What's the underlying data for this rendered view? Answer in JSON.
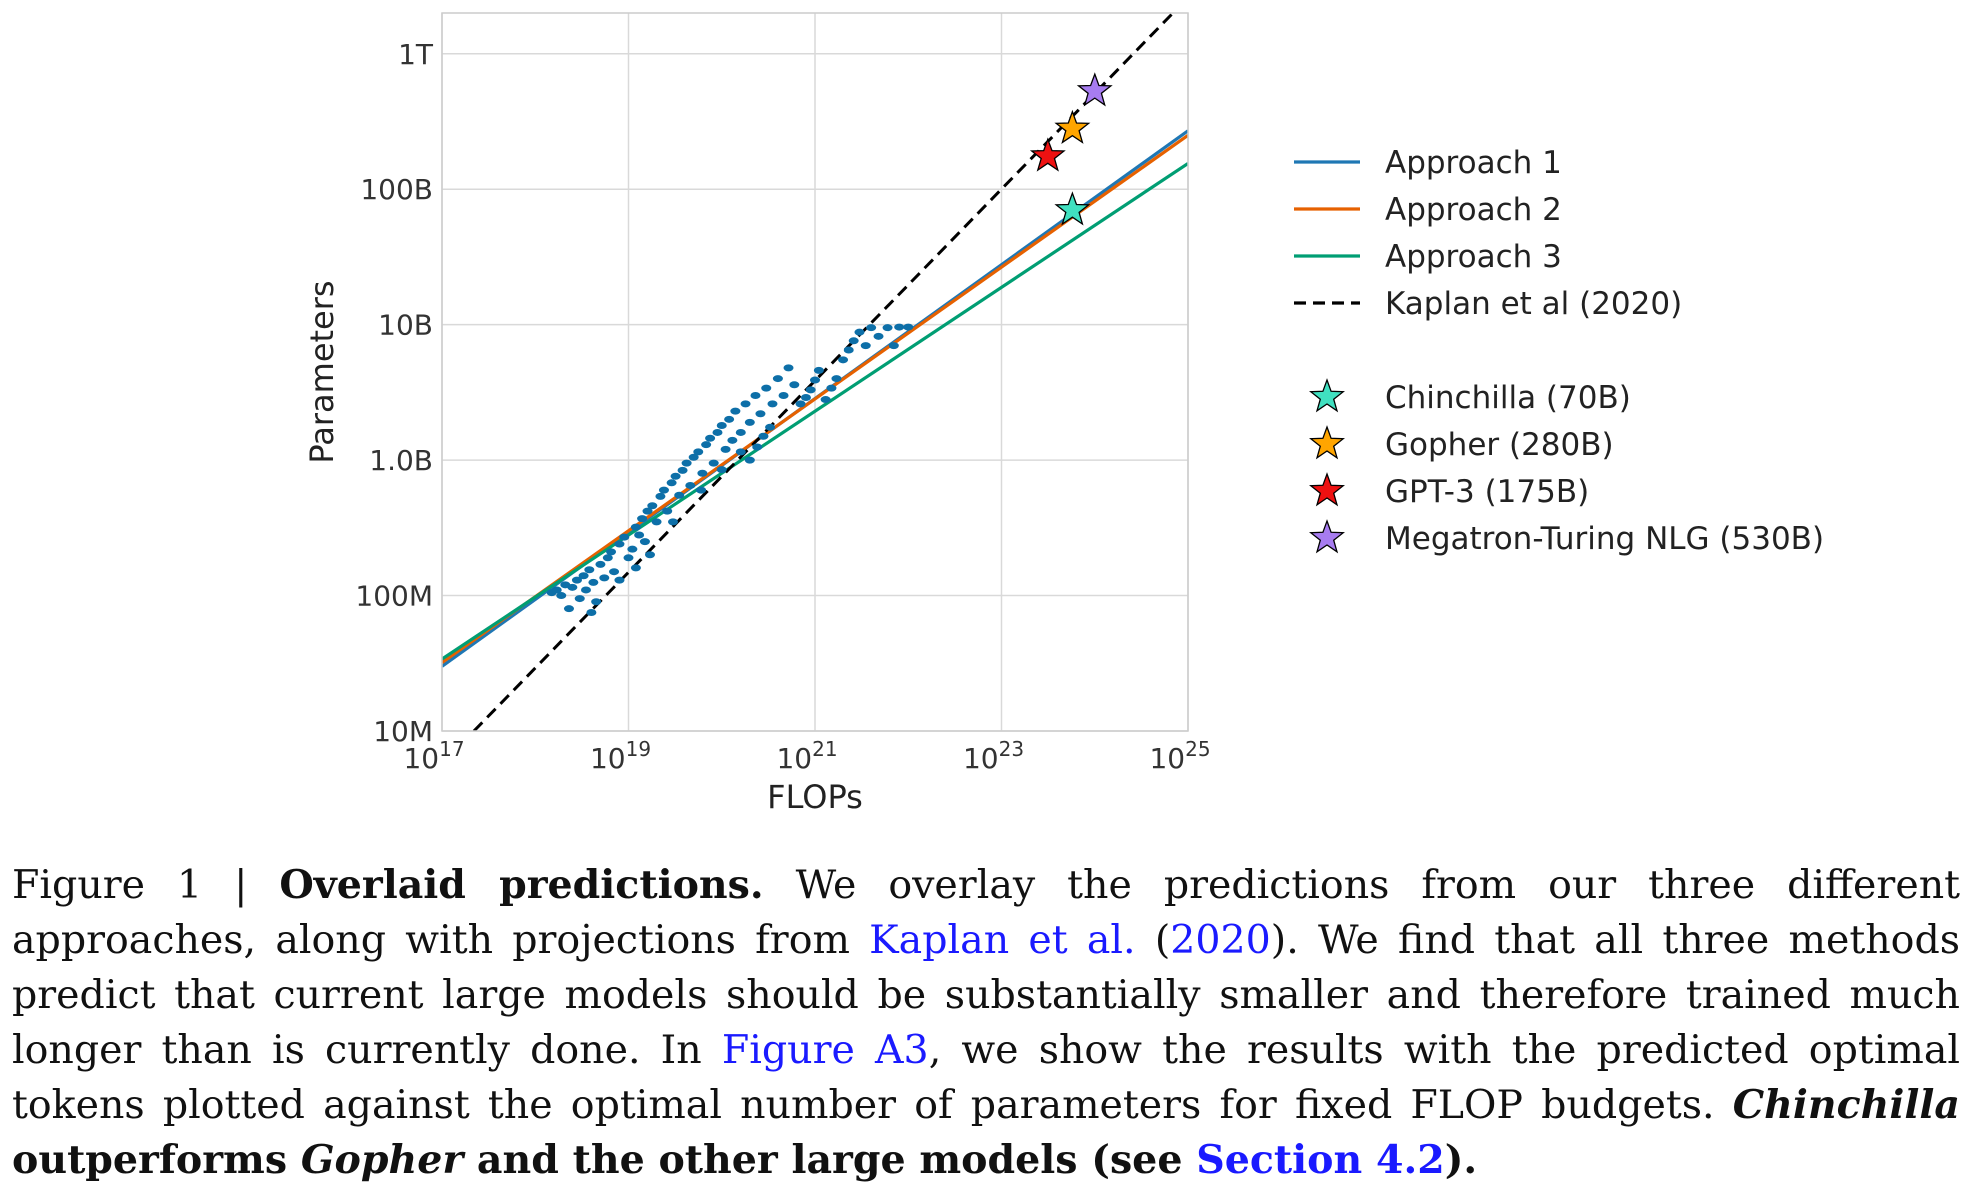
{
  "chart_data": {
    "type": "scatter",
    "xlabel": "FLOPs",
    "ylabel": "Parameters",
    "xscale": "log",
    "yscale": "log",
    "xlim": [
      1e+17,
      1e+25
    ],
    "ylim": [
      10000000.0,
      2000000000000.0
    ],
    "grid": true,
    "legend_position": "right",
    "x_ticks": [
      {
        "value": 1e+17,
        "base": "10",
        "exp": "17"
      },
      {
        "value": 1e+19,
        "base": "10",
        "exp": "19"
      },
      {
        "value": 1e+21,
        "base": "10",
        "exp": "21"
      },
      {
        "value": 1e+23,
        "base": "10",
        "exp": "23"
      },
      {
        "value": 1e+25,
        "base": "10",
        "exp": "25"
      }
    ],
    "y_ticks": [
      {
        "value": 10000000.0,
        "label": "10M"
      },
      {
        "value": 100000000.0,
        "label": "100M"
      },
      {
        "value": 1000000000.0,
        "label": "1.0B"
      },
      {
        "value": 10000000000.0,
        "label": "10B"
      },
      {
        "value": 100000000000.0,
        "label": "100B"
      },
      {
        "value": 1000000000000.0,
        "label": "1T"
      }
    ],
    "lines": [
      {
        "name": "Approach 1",
        "color": "#1f77b4",
        "dash": "solid",
        "x": [
          1e+17,
          1e+25
        ],
        "y": [
          30000000.0,
          270000000000.0
        ]
      },
      {
        "name": "Approach 2",
        "color": "#e66100",
        "dash": "solid",
        "x": [
          1e+17,
          1e+25
        ],
        "y": [
          32000000.0,
          250000000000.0
        ]
      },
      {
        "name": "Approach 3",
        "color": "#009e73",
        "dash": "solid",
        "x": [
          1e+17,
          1e+25
        ],
        "y": [
          34000000.0,
          155000000000.0
        ]
      },
      {
        "name": "Kaplan et al (2020)",
        "color": "#000000",
        "dash": "dashed",
        "x": [
          2.2e+17,
          1e+25
        ],
        "y": [
          10000000.0,
          2600000000000.0
        ]
      }
    ],
    "models": [
      {
        "name": "Chinchilla (70B)",
        "flops": 5.76e+23,
        "params": 70000000000.0,
        "color": "#40e0c0"
      },
      {
        "name": "Gopher (280B)",
        "flops": 5.76e+23,
        "params": 280000000000.0,
        "color": "#ffa500"
      },
      {
        "name": "GPT-3 (175B)",
        "flops": 3.14e+23,
        "params": 175000000000.0,
        "color": "#ee1111"
      },
      {
        "name": "Megatron-Turing NLG (530B)",
        "flops": 1e+24,
        "params": 530000000000.0,
        "color": "#a77cf0"
      }
    ],
    "scatter_color": "#0d6fa8",
    "scatter_points": [
      [
        1.5e+18,
        105000000.0
      ],
      [
        1.7e+18,
        110000000.0
      ],
      [
        1.9e+18,
        100000000.0
      ],
      [
        2.1e+18,
        120000000.0
      ],
      [
        2.3e+18,
        80000000.0
      ],
      [
        2.5e+18,
        115000000.0
      ],
      [
        2.8e+18,
        130000000.0
      ],
      [
        3e+18,
        95000000.0
      ],
      [
        3.3e+18,
        140000000.0
      ],
      [
        3.5e+18,
        110000000.0
      ],
      [
        3.8e+18,
        155000000.0
      ],
      [
        4.2e+18,
        125000000.0
      ],
      [
        4.5e+18,
        90000000.0
      ],
      [
        5e+18,
        170000000.0
      ],
      [
        5.5e+18,
        135000000.0
      ],
      [
        6e+18,
        190000000.0
      ],
      [
        6.5e+18,
        210000000.0
      ],
      [
        7e+18,
        150000000.0
      ],
      [
        8e+18,
        240000000.0
      ],
      [
        9e+18,
        270000000.0
      ],
      [
        1e+19,
        190000000.0
      ],
      [
        1.1e+19,
        220000000.0
      ],
      [
        1.2e+19,
        320000000.0
      ],
      [
        1.3e+19,
        280000000.0
      ],
      [
        1.4e+19,
        370000000.0
      ],
      [
        1.5e+19,
        250000000.0
      ],
      [
        1.6e+19,
        420000000.0
      ],
      [
        1.8e+19,
        460000000.0
      ],
      [
        2e+19,
        350000000.0
      ],
      [
        2.2e+19,
        540000000.0
      ],
      [
        2.4e+19,
        600000000.0
      ],
      [
        2.6e+19,
        420000000.0
      ],
      [
        2.9e+19,
        680000000.0
      ],
      [
        3.2e+19,
        760000000.0
      ],
      [
        3.5e+19,
        550000000.0
      ],
      [
        3.8e+19,
        840000000.0
      ],
      [
        4.2e+19,
        950000000.0
      ],
      [
        4.6e+19,
        650000000.0
      ],
      [
        5e+19,
        1050000000.0
      ],
      [
        5.6e+19,
        1150000000.0
      ],
      [
        6.2e+19,
        800000000.0
      ],
      [
        6.8e+19,
        1300000000.0
      ],
      [
        7.5e+19,
        1450000000.0
      ],
      [
        8.2e+19,
        950000000.0
      ],
      [
        9e+19,
        1600000000.0
      ],
      [
        1e+20,
        1800000000.0
      ],
      [
        1.1e+20,
        1200000000.0
      ],
      [
        1.2e+20,
        2000000000.0
      ],
      [
        1.3e+20,
        1400000000.0
      ],
      [
        1.4e+20,
        2300000000.0
      ],
      [
        1.6e+20,
        1600000000.0
      ],
      [
        1.8e+20,
        2600000000.0
      ],
      [
        2e+20,
        1900000000.0
      ],
      [
        2.3e+20,
        3000000000.0
      ],
      [
        2.6e+20,
        2200000000.0
      ],
      [
        3e+20,
        3400000000.0
      ],
      [
        3.5e+20,
        2600000000.0
      ],
      [
        4e+20,
        4000000000.0
      ],
      [
        4.6e+20,
        3000000000.0
      ],
      [
        5.2e+20,
        4800000000.0
      ],
      [
        6e+20,
        3600000000.0
      ],
      [
        7e+20,
        2600000000.0
      ],
      [
        8e+20,
        2900000000.0
      ],
      [
        9e+20,
        3300000000.0
      ],
      [
        1e+21,
        3900000000.0
      ],
      [
        1.1e+21,
        4600000000.0
      ],
      [
        1.3e+21,
        2800000000.0
      ],
      [
        1.5e+21,
        3400000000.0
      ],
      [
        1.7e+21,
        4000000000.0
      ],
      [
        2e+21,
        5500000000.0
      ],
      [
        2.3e+21,
        6500000000.0
      ],
      [
        2.6e+21,
        7600000000.0
      ],
      [
        3e+21,
        8800000000.0
      ],
      [
        3.5e+21,
        7000000000.0
      ],
      [
        4e+21,
        9500000000.0
      ],
      [
        4.8e+21,
        8200000000.0
      ],
      [
        6e+21,
        9500000000.0
      ],
      [
        7e+21,
        7000000000.0
      ],
      [
        8e+21,
        9600000000.0
      ],
      [
        1e+22,
        9600000000.0
      ],
      [
        2e+20,
        1000000000.0
      ],
      [
        2.4e+20,
        1250000000.0
      ],
      [
        2.8e+20,
        1500000000.0
      ],
      [
        3.3e+20,
        1750000000.0
      ],
      [
        1.6e+20,
        1150000000.0
      ],
      [
        1e+20,
        850000000.0
      ],
      [
        6e+19,
        600000000.0
      ],
      [
        3e+19,
        350000000.0
      ],
      [
        1.7e+19,
        200000000.0
      ],
      [
        1.2e+19,
        160000000.0
      ],
      [
        8e+18,
        130000000.0
      ],
      [
        4e+18,
        75000000.0
      ]
    ]
  },
  "legend": {
    "lines": [
      "Approach 1",
      "Approach 2",
      "Approach 3",
      "Kaplan et al (2020)"
    ],
    "models": [
      "Chinchilla (70B)",
      "Gopher (280B)",
      "GPT-3 (175B)",
      "Megatron-Turing NLG (530B)"
    ]
  },
  "caption": {
    "figure_label": "Figure 1 | ",
    "title": "Overlaid predictions.",
    "text1": " We overlay the predictions from our three different approaches, along with projections from ",
    "cite_kaplan": "Kaplan et al.",
    "open_paren": " (",
    "cite_year": "2020",
    "text2": "). We find that all three methods predict that current large models should be substantially smaller and therefore trained much longer than is currently done. In ",
    "figure_ref": "Figure A3",
    "text3": ", we show the results with the predicted optimal tokens plotted against the optimal number of parameters for fixed FLOP budgets. ",
    "chinchilla": "Chinchilla",
    "bold_mid": " outperforms ",
    "gopher": "Gopher",
    "bold_end": " and the other large models (see ",
    "section_ref": "Section 4.2",
    "close": ")."
  }
}
